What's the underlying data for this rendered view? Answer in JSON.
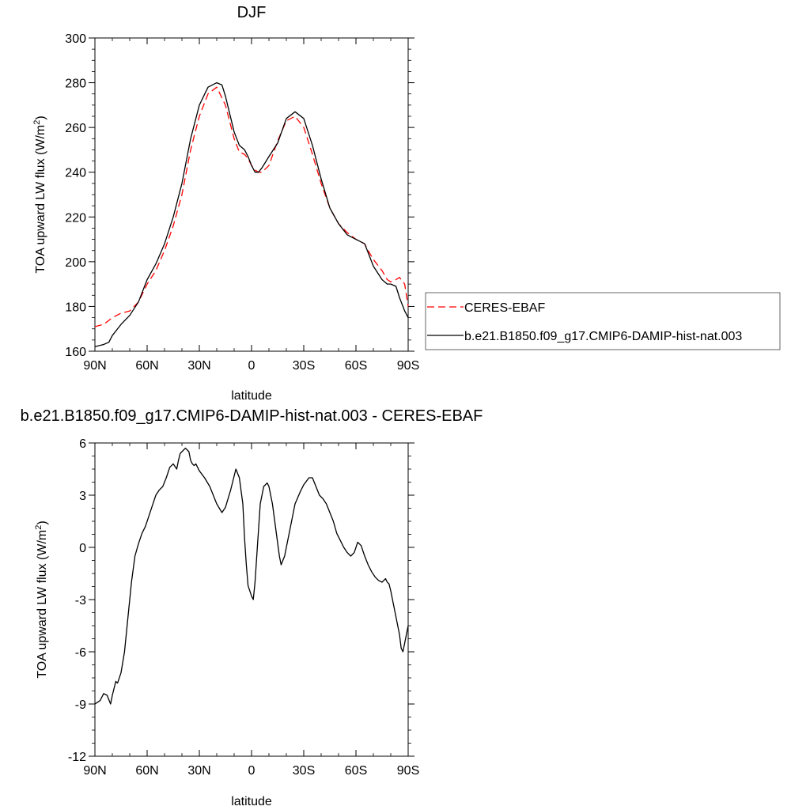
{
  "chart_data": [
    {
      "type": "line",
      "title": "DJF",
      "xlabel": "latitude",
      "ylabel": "TOA upward LW flux (W/m",
      "ylabel_sup": "2",
      "ylabel_close": ")",
      "xlim": [
        90,
        -90
      ],
      "ylim": [
        160,
        300
      ],
      "xticks": [
        {
          "value": 90,
          "label": "90N"
        },
        {
          "value": 60,
          "label": "60N"
        },
        {
          "value": 30,
          "label": "30N"
        },
        {
          "value": 0,
          "label": "0"
        },
        {
          "value": -30,
          "label": "30S"
        },
        {
          "value": -60,
          "label": "60S"
        },
        {
          "value": -90,
          "label": "90S"
        }
      ],
      "yticks": [
        160,
        180,
        200,
        220,
        240,
        260,
        280,
        300
      ],
      "legend_position": "right",
      "series": [
        {
          "name": "CERES-EBAF",
          "color": "#ff0000",
          "style": "dashed",
          "x": [
            90,
            85,
            80,
            75,
            70,
            65,
            60,
            55,
            50,
            45,
            40,
            35,
            30,
            25,
            20,
            15,
            10,
            7,
            4,
            2,
            0,
            -2,
            -4,
            -6,
            -10,
            -15,
            -20,
            -25,
            -30,
            -35,
            -40,
            -45,
            -50,
            -55,
            -60,
            -65,
            -67,
            -70,
            -75,
            -78,
            -80,
            -83,
            -85,
            -88,
            -90
          ],
          "y": [
            171,
            172,
            175,
            177,
            178,
            182,
            190,
            196,
            205,
            216,
            230,
            250,
            265,
            275,
            278,
            270,
            255,
            249,
            248,
            246,
            243,
            241,
            240,
            240,
            243,
            254,
            263,
            265,
            260,
            248,
            235,
            224,
            217,
            213,
            210,
            208,
            205,
            201,
            196,
            192,
            191,
            192,
            193,
            190,
            180
          ]
        },
        {
          "name": "b.e21.B1850.f09_g17.CMIP6-DAMIP-hist-nat.003",
          "color": "#000000",
          "style": "solid",
          "x": [
            90,
            85,
            82,
            80,
            75,
            70,
            65,
            60,
            55,
            50,
            45,
            40,
            35,
            30,
            25,
            20,
            17,
            15,
            10,
            7,
            4,
            2,
            0,
            -2,
            -4,
            -6,
            -10,
            -15,
            -20,
            -25,
            -30,
            -35,
            -40,
            -45,
            -50,
            -55,
            -60,
            -65,
            -67,
            -70,
            -75,
            -78,
            -80,
            -83,
            -85,
            -88,
            -90
          ],
          "y": [
            162,
            163,
            164,
            167,
            172,
            176,
            182,
            192,
            199,
            208,
            220,
            235,
            255,
            270,
            278,
            280,
            279,
            274,
            258,
            252,
            250,
            247,
            243,
            240,
            240,
            242,
            247,
            253,
            264,
            267,
            264,
            252,
            237,
            224,
            217,
            212,
            210,
            208,
            204,
            198,
            192,
            190,
            190,
            189,
            184,
            178,
            175
          ]
        }
      ]
    },
    {
      "type": "line",
      "title": "b.e21.B1850.f09_g17.CMIP6-DAMIP-hist-nat.003 - CERES-EBAF",
      "xlabel": "latitude",
      "ylabel": "TOA upward LW flux (W/m",
      "ylabel_sup": "2",
      "ylabel_close": ")",
      "xlim": [
        90,
        -90
      ],
      "ylim": [
        -12,
        6
      ],
      "xticks": [
        {
          "value": 90,
          "label": "90N"
        },
        {
          "value": 60,
          "label": "60N"
        },
        {
          "value": 30,
          "label": "30N"
        },
        {
          "value": 0,
          "label": "0"
        },
        {
          "value": -30,
          "label": "30S"
        },
        {
          "value": -60,
          "label": "60S"
        },
        {
          "value": -90,
          "label": "90S"
        }
      ],
      "yticks": [
        -12,
        -9,
        -6,
        -3,
        0,
        3,
        6
      ],
      "series": [
        {
          "name": "",
          "color": "#000000",
          "style": "solid",
          "x": [
            90,
            87,
            85,
            83,
            81,
            80,
            78,
            77,
            75,
            73,
            71,
            69,
            67,
            65,
            63,
            61,
            59,
            57,
            55,
            53,
            51,
            49,
            47,
            45,
            43,
            42,
            41,
            40,
            38,
            36,
            35,
            34,
            33,
            32,
            31,
            30,
            27,
            24,
            22,
            20,
            17,
            15,
            12,
            9,
            7,
            5,
            4,
            3,
            2,
            0,
            -1,
            -2,
            -3,
            -4,
            -5,
            -7,
            -9,
            -10,
            -12,
            -14,
            -16,
            -17,
            -19,
            -21,
            -23,
            -25,
            -28,
            -30,
            -33,
            -35,
            -37,
            -39,
            -41,
            -43,
            -45,
            -47,
            -49,
            -51,
            -53,
            -55,
            -57,
            -59,
            -61,
            -63,
            -65,
            -67,
            -69,
            -71,
            -73,
            -75,
            -77,
            -78,
            -79,
            -80,
            -81,
            -82,
            -84,
            -85,
            -86,
            -87,
            -88,
            -89,
            -90
          ],
          "y": [
            -9,
            -8.8,
            -8.4,
            -8.5,
            -9,
            -8.5,
            -7.7,
            -7.8,
            -7.2,
            -6,
            -4,
            -2,
            -0.5,
            0.2,
            0.8,
            1.2,
            1.8,
            2.4,
            3,
            3.3,
            3.5,
            4,
            4.6,
            4.8,
            4.5,
            5,
            5.4,
            5.5,
            5.7,
            5.5,
            5,
            4.8,
            4.7,
            4.8,
            4.6,
            4.4,
            4,
            3.5,
            3,
            2.5,
            2,
            2.3,
            3.3,
            4.5,
            4,
            2.5,
            0.5,
            -1,
            -2.2,
            -2.8,
            -3,
            -2,
            -0.5,
            1,
            2.5,
            3.5,
            3.7,
            3.5,
            2.5,
            1,
            -0.5,
            -1,
            -0.5,
            0.5,
            1.5,
            2.5,
            3.2,
            3.6,
            4,
            4,
            3.5,
            3,
            2.8,
            2.5,
            2,
            1.5,
            0.8,
            0.4,
            0,
            -0.3,
            -0.5,
            -0.3,
            0.3,
            0.1,
            -0.5,
            -1,
            -1.4,
            -1.7,
            -1.9,
            -2,
            -1.8,
            -2,
            -2.1,
            -2.5,
            -3,
            -3.5,
            -4.5,
            -5,
            -5.8,
            -6,
            -5.5,
            -5,
            -4.5
          ]
        }
      ]
    }
  ]
}
